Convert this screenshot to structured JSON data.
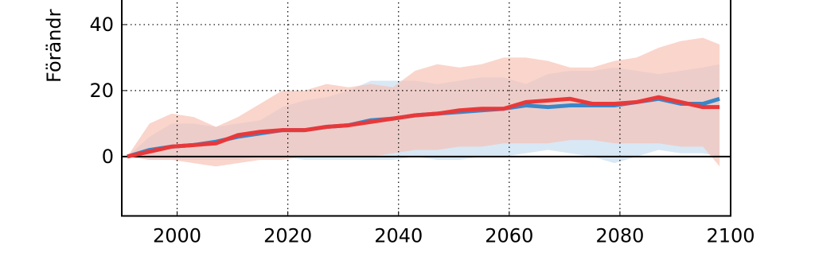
{
  "chart_data": {
    "type": "line",
    "ylabel": "Förändr",
    "x": [
      1991,
      1995,
      1999,
      2003,
      2007,
      2011,
      2015,
      2019,
      2023,
      2027,
      2031,
      2035,
      2039,
      2043,
      2047,
      2051,
      2055,
      2059,
      2063,
      2067,
      2071,
      2075,
      2079,
      2083,
      2087,
      2091,
      2095,
      2098
    ],
    "series": [
      {
        "color": "#3a87c8",
        "band_color": "#c5dcf0",
        "values": [
          0,
          2,
          3,
          3.5,
          4.5,
          6,
          7,
          8,
          8,
          9,
          9.5,
          11,
          11.5,
          12.5,
          13,
          13.5,
          14,
          14.5,
          15.5,
          15,
          15.5,
          15.5,
          15.5,
          16.5,
          17.5,
          16,
          16,
          17.5
        ],
        "lower": [
          0,
          -1,
          -1,
          -1,
          -1,
          -1,
          0,
          0,
          -1,
          -1,
          -1,
          -1,
          -1,
          0,
          -1,
          -1,
          0,
          0,
          1,
          2,
          1,
          0,
          -2,
          0,
          2,
          1,
          1,
          0
        ],
        "upper": [
          0,
          6,
          10,
          10,
          9,
          10,
          11,
          15,
          17,
          18,
          20,
          23,
          23,
          23,
          22,
          23,
          24,
          24,
          22,
          25,
          26,
          26,
          27,
          26,
          25,
          26,
          27,
          28
        ]
      },
      {
        "color": "#e8393a",
        "band_color": "#f8bfb0",
        "values": [
          0,
          1.5,
          3,
          3.5,
          4,
          6.5,
          7.5,
          8,
          8,
          9,
          9.5,
          10.5,
          11.5,
          12.5,
          13,
          14,
          14.5,
          14.5,
          16.5,
          17,
          17.5,
          16,
          16,
          16.5,
          18,
          16.5,
          15,
          15
        ],
        "lower": [
          0,
          -1,
          -1,
          -2,
          -3,
          -2,
          -1,
          -1,
          0,
          0,
          0,
          0,
          1,
          2,
          2,
          3,
          3,
          4,
          4,
          4,
          5,
          5,
          4,
          4,
          4,
          3,
          3,
          -3
        ],
        "upper": [
          0,
          10,
          13,
          12,
          9,
          12,
          16,
          20,
          20,
          22,
          21,
          22,
          21,
          26,
          28,
          27,
          28,
          30,
          30,
          29,
          27,
          27,
          29,
          30,
          33,
          35,
          36,
          34
        ]
      }
    ],
    "xlim": [
      1990,
      2100
    ],
    "xticks": [
      2000,
      2020,
      2040,
      2060,
      2080,
      2100
    ],
    "ylim": [
      -18,
      60
    ],
    "yticks": [
      0,
      20,
      40
    ],
    "grid": true
  }
}
